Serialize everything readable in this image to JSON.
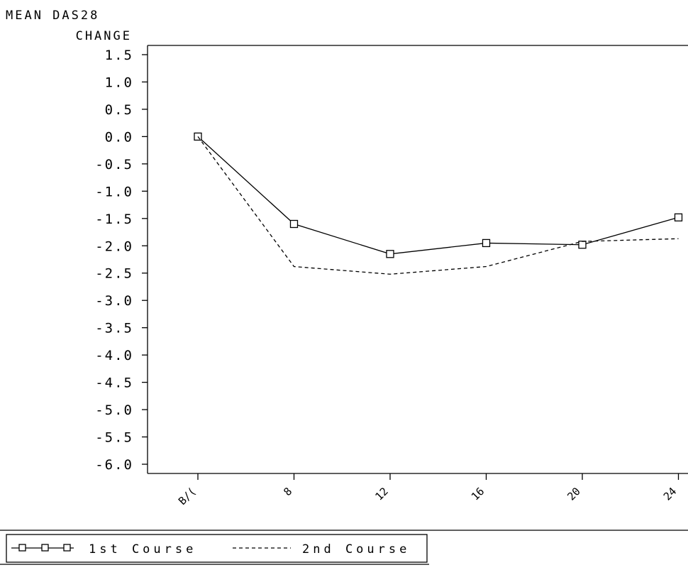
{
  "chart_data": {
    "type": "line",
    "title": "",
    "ylabel_lines": [
      "MEAN DAS28",
      "CHANGE"
    ],
    "xlabel": "",
    "categories": [
      "B/L",
      "8",
      "12",
      "16",
      "20",
      "24"
    ],
    "x_tick_labels": [
      "B/(",
      "8",
      "12",
      "16",
      "20",
      "24"
    ],
    "y_ticks": [
      "1.5",
      "1.0",
      "0.5",
      "0.0",
      "-0.5",
      "-1.0",
      "-1.5",
      "-2.0",
      "-2.5",
      "-3.0",
      "-3.5",
      "-4.0",
      "-4.5",
      "-5.0",
      "-5.5",
      "-6.0"
    ],
    "ylim": [
      -6.0,
      1.5
    ],
    "grid": false,
    "legend_position": "bottom-left",
    "series": [
      {
        "name": "1st Course",
        "values": [
          0.0,
          -1.6,
          -2.15,
          -1.95,
          -1.98,
          -1.48
        ],
        "style": "solid",
        "marker": "square"
      },
      {
        "name": "2nd Course",
        "values": [
          0.0,
          -2.38,
          -2.52,
          -2.38,
          -1.92,
          -1.87
        ],
        "style": "dashed",
        "marker": "none"
      }
    ],
    "line_color": "#000000"
  }
}
